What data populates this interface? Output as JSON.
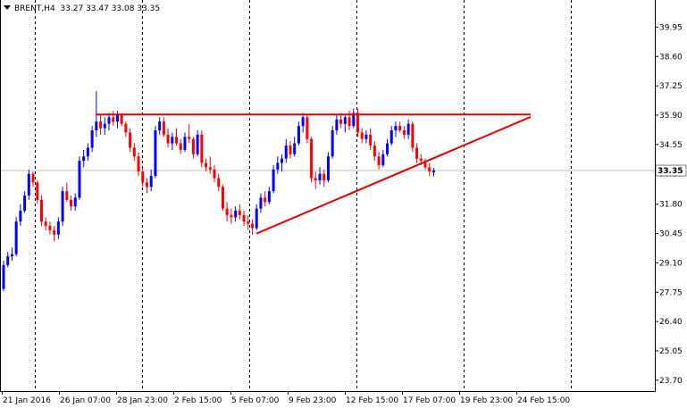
{
  "header": {
    "symbol": "BRENT,H4",
    "ohlc": "33.27 33.47 33.08 33.35"
  },
  "colors": {
    "up_candle": "#0000ff",
    "down_candle": "#ff0000",
    "grid": "#000000",
    "trendline": "#e00000",
    "price_line": "#c0c0c0",
    "background": "#ffffff"
  },
  "chart_data": {
    "type": "candlestick",
    "ylim": [
      23.2,
      41.2
    ],
    "y_ticks": [
      "39.95",
      "38.60",
      "37.25",
      "35.90",
      "34.55",
      "33.20",
      "31.80",
      "30.45",
      "29.10",
      "27.75",
      "26.40",
      "25.05",
      "23.70"
    ],
    "x_ticks": [
      "21 Jan 2016",
      "26 Jan 07:00",
      "28 Jan 23:00",
      "2 Feb 15:00",
      "5 Feb 07:00",
      "9 Feb 23:00",
      "12 Feb 15:00",
      "17 Feb 07:00",
      "19 Feb 23:00",
      "24 Feb 15:00"
    ],
    "current_price": "33.35",
    "grid": "vertical dashed",
    "candles": [
      [
        27.9,
        29.2,
        27.8,
        29.0
      ],
      [
        29.0,
        29.6,
        28.9,
        29.4
      ],
      [
        29.4,
        29.8,
        29.2,
        29.5
      ],
      [
        29.5,
        31.2,
        29.4,
        31.0
      ],
      [
        31.0,
        31.8,
        30.8,
        31.5
      ],
      [
        31.5,
        32.4,
        31.4,
        32.2
      ],
      [
        32.2,
        33.4,
        32.0,
        33.2
      ],
      [
        33.2,
        33.3,
        32.6,
        32.8
      ],
      [
        32.8,
        32.9,
        31.8,
        32.0
      ],
      [
        32.0,
        32.2,
        30.8,
        31.0
      ],
      [
        31.0,
        31.2,
        30.6,
        30.8
      ],
      [
        30.8,
        31.0,
        30.4,
        30.6
      ],
      [
        30.6,
        30.8,
        30.1,
        30.4
      ],
      [
        30.4,
        31.2,
        30.2,
        31.0
      ],
      [
        31.0,
        32.6,
        30.8,
        32.4
      ],
      [
        32.4,
        32.8,
        31.9,
        32.0
      ],
      [
        32.0,
        32.2,
        31.5,
        31.7
      ],
      [
        31.7,
        32.3,
        31.5,
        32.1
      ],
      [
        32.1,
        34.0,
        32.0,
        33.8
      ],
      [
        33.8,
        34.3,
        33.5,
        34.0
      ],
      [
        34.0,
        34.6,
        33.8,
        34.4
      ],
      [
        34.4,
        35.4,
        34.2,
        35.2
      ],
      [
        35.2,
        37.0,
        34.9,
        35.6
      ],
      [
        35.6,
        35.9,
        35.0,
        35.3
      ],
      [
        35.3,
        35.8,
        35.0,
        35.5
      ],
      [
        35.5,
        36.0,
        35.2,
        35.8
      ],
      [
        35.8,
        36.1,
        35.4,
        35.6
      ],
      [
        35.6,
        36.1,
        35.3,
        35.9
      ],
      [
        35.9,
        36.0,
        35.4,
        35.5
      ],
      [
        35.5,
        35.6,
        34.9,
        35.1
      ],
      [
        35.1,
        35.3,
        34.2,
        34.4
      ],
      [
        34.4,
        34.6,
        33.8,
        34.0
      ],
      [
        34.0,
        34.2,
        33.1,
        33.3
      ],
      [
        33.3,
        33.5,
        32.6,
        32.8
      ],
      [
        32.8,
        33.0,
        32.3,
        32.6
      ],
      [
        32.6,
        33.4,
        32.4,
        33.1
      ],
      [
        33.1,
        35.4,
        33.0,
        35.2
      ],
      [
        35.2,
        35.8,
        35.0,
        35.6
      ],
      [
        35.6,
        35.8,
        34.9,
        35.0
      ],
      [
        35.0,
        35.3,
        34.4,
        34.6
      ],
      [
        34.6,
        35.1,
        34.3,
        34.9
      ],
      [
        34.9,
        35.3,
        34.5,
        34.6
      ],
      [
        34.6,
        34.8,
        34.1,
        34.3
      ],
      [
        34.3,
        35.1,
        34.2,
        34.9
      ],
      [
        34.9,
        35.5,
        34.6,
        34.8
      ],
      [
        34.8,
        34.9,
        33.9,
        34.1
      ],
      [
        34.1,
        35.2,
        34.0,
        35.0
      ],
      [
        35.0,
        35.2,
        33.5,
        33.7
      ],
      [
        33.7,
        33.9,
        33.3,
        33.5
      ],
      [
        33.5,
        34.0,
        33.2,
        33.4
      ],
      [
        33.4,
        33.6,
        32.8,
        33.0
      ],
      [
        33.0,
        33.2,
        32.4,
        32.6
      ],
      [
        32.6,
        32.7,
        31.5,
        31.6
      ],
      [
        31.6,
        31.9,
        31.0,
        31.3
      ],
      [
        31.3,
        31.6,
        30.9,
        31.2
      ],
      [
        31.2,
        31.7,
        31.0,
        31.5
      ],
      [
        31.5,
        31.8,
        31.1,
        31.3
      ],
      [
        31.3,
        31.5,
        30.8,
        31.0
      ],
      [
        31.0,
        31.3,
        30.6,
        30.9
      ],
      [
        30.9,
        31.1,
        30.4,
        30.7
      ],
      [
        30.7,
        31.8,
        30.6,
        31.6
      ],
      [
        31.6,
        32.3,
        31.4,
        32.1
      ],
      [
        32.1,
        32.4,
        31.7,
        31.9
      ],
      [
        31.9,
        32.6,
        31.8,
        32.4
      ],
      [
        32.4,
        33.6,
        32.3,
        33.4
      ],
      [
        33.4,
        34.0,
        33.2,
        33.7
      ],
      [
        33.7,
        34.1,
        33.3,
        33.9
      ],
      [
        33.9,
        34.8,
        33.7,
        34.5
      ],
      [
        34.5,
        34.7,
        33.9,
        34.1
      ],
      [
        34.1,
        34.9,
        34.0,
        34.6
      ],
      [
        34.6,
        35.6,
        34.5,
        35.4
      ],
      [
        35.4,
        36.0,
        35.1,
        35.8
      ],
      [
        35.8,
        35.9,
        34.6,
        34.8
      ],
      [
        34.8,
        34.9,
        32.8,
        33.0
      ],
      [
        33.0,
        33.3,
        32.5,
        32.9
      ],
      [
        32.9,
        33.5,
        32.7,
        33.2
      ],
      [
        33.2,
        33.4,
        32.6,
        32.9
      ],
      [
        32.9,
        34.2,
        32.8,
        34.0
      ],
      [
        34.0,
        35.4,
        33.9,
        35.2
      ],
      [
        35.2,
        35.9,
        35.0,
        35.7
      ],
      [
        35.7,
        36.0,
        35.3,
        35.5
      ],
      [
        35.5,
        35.9,
        35.1,
        35.8
      ],
      [
        35.8,
        36.1,
        35.2,
        35.4
      ],
      [
        35.4,
        36.2,
        35.3,
        36.0
      ],
      [
        36.0,
        36.2,
        34.9,
        35.1
      ],
      [
        35.1,
        35.3,
        34.6,
        34.8
      ],
      [
        34.8,
        35.2,
        34.6,
        35.0
      ],
      [
        35.0,
        35.3,
        34.3,
        34.5
      ],
      [
        34.5,
        34.7,
        33.8,
        34.0
      ],
      [
        34.0,
        34.2,
        33.4,
        33.6
      ],
      [
        33.6,
        34.3,
        33.5,
        34.1
      ],
      [
        34.1,
        34.8,
        34.0,
        34.6
      ],
      [
        34.6,
        35.4,
        34.5,
        35.2
      ],
      [
        35.2,
        35.6,
        34.9,
        35.4
      ],
      [
        35.4,
        35.6,
        35.1,
        35.2
      ],
      [
        35.2,
        35.4,
        34.8,
        35.0
      ],
      [
        35.0,
        35.7,
        34.8,
        35.5
      ],
      [
        35.5,
        35.6,
        34.2,
        34.4
      ],
      [
        34.4,
        34.6,
        33.7,
        33.9
      ],
      [
        33.9,
        34.1,
        33.6,
        33.8
      ],
      [
        33.8,
        33.9,
        33.4,
        33.5
      ],
      [
        33.5,
        33.7,
        33.1,
        33.3
      ],
      [
        33.27,
        33.47,
        33.08,
        33.35
      ]
    ],
    "annotations": [
      {
        "kind": "resistance",
        "from": {
          "candle": 22,
          "price": 35.93
        },
        "to": {
          "candle": 125,
          "price": 35.93
        }
      },
      {
        "kind": "support",
        "from": {
          "candle": 60,
          "price": 30.45
        },
        "to": {
          "candle": 125,
          "price": 35.82
        }
      }
    ]
  }
}
